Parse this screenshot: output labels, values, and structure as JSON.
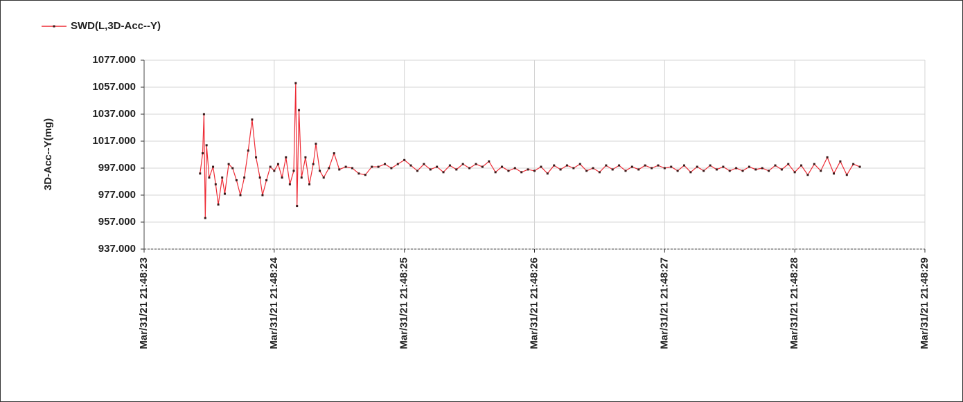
{
  "chart_data": {
    "type": "line",
    "legend": "top-left",
    "grid": true,
    "y_label": "3D-Acc--Y(mg)",
    "series": [
      {
        "name": "SWD(L,3D-Acc--Y)",
        "color": "#ee2b35",
        "marker_color": "#3a1a1a",
        "x": [
          23.43,
          23.45,
          23.46,
          23.47,
          23.48,
          23.5,
          23.53,
          23.55,
          23.57,
          23.6,
          23.62,
          23.65,
          23.68,
          23.71,
          23.74,
          23.77,
          23.8,
          23.83,
          23.86,
          23.89,
          23.91,
          23.94,
          23.97,
          24.0,
          24.03,
          24.06,
          24.09,
          24.12,
          24.15,
          24.165,
          24.175,
          24.19,
          24.21,
          24.24,
          24.27,
          24.3,
          24.32,
          24.35,
          24.38,
          24.42,
          24.46,
          24.5,
          24.55,
          24.6,
          24.65,
          24.7,
          24.75,
          24.8,
          24.85,
          24.9,
          24.95,
          25.0,
          25.05,
          25.1,
          25.15,
          25.2,
          25.25,
          25.3,
          25.35,
          25.4,
          25.45,
          25.5,
          25.55,
          25.6,
          25.65,
          25.7,
          25.75,
          25.8,
          25.85,
          25.9,
          25.95,
          26.0,
          26.05,
          26.1,
          26.15,
          26.2,
          26.25,
          26.3,
          26.35,
          26.4,
          26.45,
          26.5,
          26.55,
          26.6,
          26.65,
          26.7,
          26.75,
          26.8,
          26.85,
          26.9,
          26.95,
          27.0,
          27.05,
          27.1,
          27.15,
          27.2,
          27.25,
          27.3,
          27.35,
          27.4,
          27.45,
          27.5,
          27.55,
          27.6,
          27.65,
          27.7,
          27.75,
          27.8,
          27.85,
          27.9,
          27.95,
          28.0,
          28.05,
          28.1,
          28.15,
          28.2,
          28.25,
          28.3,
          28.35,
          28.4,
          28.45,
          28.5
        ],
        "values": [
          993,
          1008,
          1037,
          960,
          1014,
          990,
          998,
          985,
          970,
          990,
          978,
          1000,
          997,
          988,
          977,
          990,
          1010,
          1033,
          1005,
          990,
          977,
          988,
          998,
          995,
          1000,
          990,
          1005,
          985,
          995,
          1060,
          969,
          1040,
          990,
          1005,
          985,
          1000,
          1015,
          995,
          990,
          997,
          1008,
          996,
          998,
          997,
          993,
          992,
          998,
          998,
          1000,
          997,
          1000,
          1003,
          999,
          995,
          1000,
          996,
          998,
          994,
          999,
          996,
          1000,
          997,
          1000,
          998,
          1002,
          994,
          998,
          995,
          997,
          994,
          996,
          995,
          998,
          993,
          999,
          996,
          999,
          997,
          1000,
          995,
          997,
          994,
          999,
          996,
          999,
          995,
          998,
          996,
          999,
          997,
          999,
          997,
          998,
          995,
          999,
          994,
          998,
          995,
          999,
          996,
          998,
          995,
          997,
          995,
          998,
          996,
          997,
          995,
          999,
          996,
          1000,
          994,
          999,
          992,
          1000,
          995,
          1005,
          993,
          1002,
          992,
          1000,
          998
        ]
      }
    ],
    "xlim": [
      23,
      29
    ],
    "xticks": [
      {
        "value": 23,
        "label": "Mar/31/21 21:48:23"
      },
      {
        "value": 24,
        "label": "Mar/31/21 21:48:24"
      },
      {
        "value": 25,
        "label": "Mar/31/21 21:48:25"
      },
      {
        "value": 26,
        "label": "Mar/31/21 21:48:26"
      },
      {
        "value": 27,
        "label": "Mar/31/21 21:48:27"
      },
      {
        "value": 28,
        "label": "Mar/31/21 21:48:28"
      },
      {
        "value": 29,
        "label": "Mar/31/21 21:48:29"
      }
    ],
    "ylim": [
      937,
      1077
    ],
    "yticks": [
      {
        "value": 937,
        "label": "937.000"
      },
      {
        "value": 957,
        "label": "957.000"
      },
      {
        "value": 977,
        "label": "977.000"
      },
      {
        "value": 997,
        "label": "997.000"
      },
      {
        "value": 1017,
        "label": "1017.000"
      },
      {
        "value": 1037,
        "label": "1037.000"
      },
      {
        "value": 1057,
        "label": "1057.000"
      },
      {
        "value": 1077,
        "label": "1077.000"
      }
    ]
  }
}
